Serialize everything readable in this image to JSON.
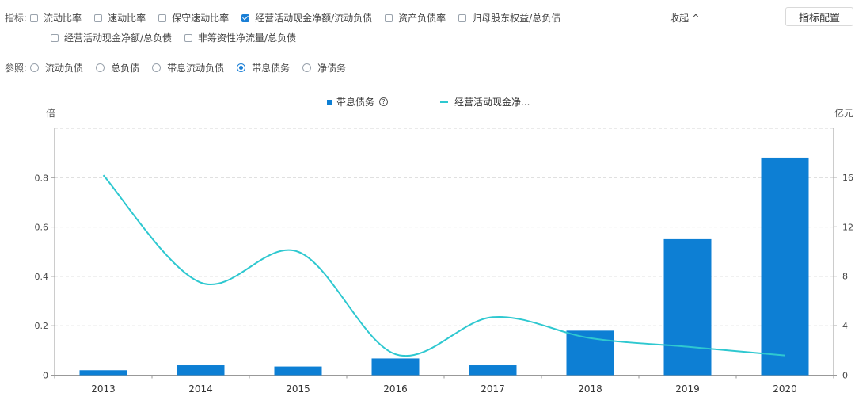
{
  "indicators": {
    "label": "指标:",
    "items": [
      {
        "label": "流动比率",
        "checked": false
      },
      {
        "label": "速动比率",
        "checked": false
      },
      {
        "label": "保守速动比率",
        "checked": false
      },
      {
        "label": "经营活动现金净额/流动负债",
        "checked": true
      },
      {
        "label": "资产负债率",
        "checked": false
      },
      {
        "label": "归母股东权益/总负债",
        "checked": false
      },
      {
        "label": "经营活动现金净额/总负债",
        "checked": false
      },
      {
        "label": "非筹资性净流量/总负债",
        "checked": false
      }
    ],
    "collapse_label": "收起 ^",
    "config_button": "指标配置"
  },
  "reference": {
    "label": "参照:",
    "items": [
      {
        "label": "流动负债",
        "selected": false
      },
      {
        "label": "总负债",
        "selected": false
      },
      {
        "label": "带息流动负债",
        "selected": false
      },
      {
        "label": "带息债务",
        "selected": true
      },
      {
        "label": "净债务",
        "selected": false
      }
    ]
  },
  "legend": {
    "bar_label": "带息债务",
    "line_label": "经营活动现金净..."
  },
  "colors": {
    "bar": "#0d7fd4",
    "line": "#2ec8d0",
    "accent": "#1a7fd6"
  },
  "chart_data": {
    "type": "bar",
    "categories": [
      "2013",
      "2014",
      "2015",
      "2016",
      "2017",
      "2018",
      "2019",
      "2020"
    ],
    "series": [
      {
        "name": "带息债务",
        "type": "bar",
        "axis": "right",
        "values": [
          0.4,
          0.8,
          0.7,
          1.35,
          0.8,
          3.6,
          11.0,
          17.6
        ]
      },
      {
        "name": "经营活动现金净...",
        "type": "line",
        "axis": "left",
        "values": [
          0.81,
          0.375,
          0.5,
          0.085,
          0.235,
          0.15,
          0.115,
          0.08
        ]
      }
    ],
    "left_axis": {
      "label": "倍",
      "ylim": [
        0,
        1.0
      ],
      "ticks": [
        0,
        0.2,
        0.4,
        0.6,
        0.8
      ]
    },
    "right_axis": {
      "label": "亿元",
      "ylim": [
        0,
        20
      ],
      "ticks": [
        0,
        4,
        8,
        12,
        16
      ]
    },
    "grid": true,
    "legend_position": "top-center"
  }
}
